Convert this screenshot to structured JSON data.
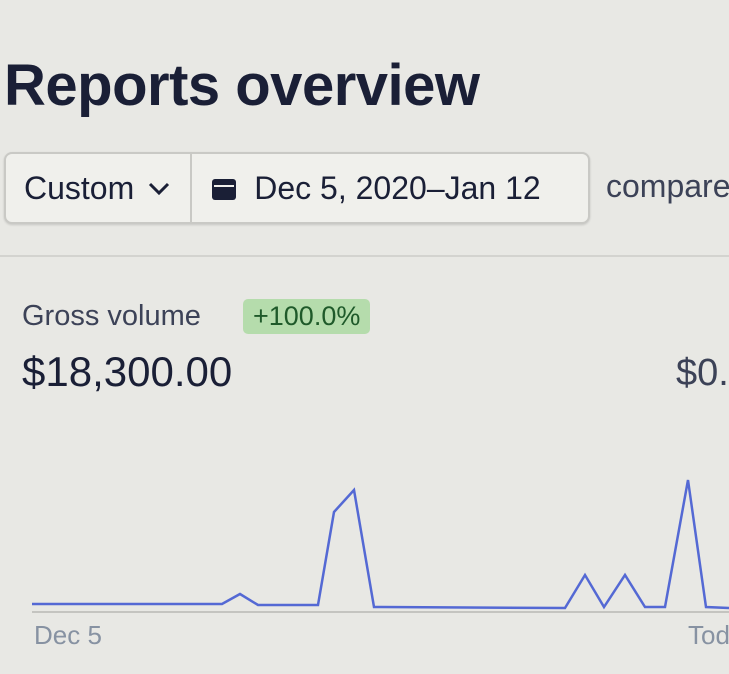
{
  "header": {
    "title": "Reports overview"
  },
  "filters": {
    "range": "Custom",
    "dates": "Dec 5, 2020–Jan 12",
    "compare": "compare"
  },
  "metric": {
    "label": "Gross volume",
    "change": "+100.0%",
    "value": "$18,300.00",
    "compare_value": "$0."
  },
  "axis": {
    "start": "Dec 5",
    "end": "Tod"
  }
}
